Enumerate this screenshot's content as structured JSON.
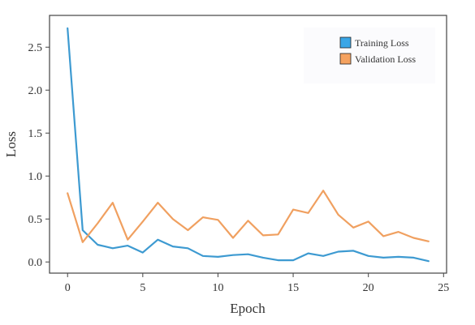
{
  "chart_data": {
    "type": "line",
    "xlabel": "Epoch",
    "ylabel": "Loss",
    "xlim": [
      -1.2,
      25.2
    ],
    "ylim": [
      -0.13,
      2.87
    ],
    "xticks": [
      0,
      5,
      10,
      15,
      20,
      25
    ],
    "xtick_labels": [
      "0",
      "5",
      "10",
      "15",
      "20",
      "25"
    ],
    "yticks": [
      0.0,
      0.5,
      1.0,
      1.5,
      2.0,
      2.5
    ],
    "ytick_labels": [
      "0.0",
      "0.5",
      "1.0",
      "1.5",
      "2.0",
      "2.5"
    ],
    "grid": false,
    "legend_position": "top-right",
    "x": [
      0,
      1,
      2,
      3,
      4,
      5,
      6,
      7,
      8,
      9,
      10,
      11,
      12,
      13,
      14,
      15,
      16,
      17,
      18,
      19,
      20,
      21,
      22,
      23,
      24
    ],
    "series": [
      {
        "name": "Training Loss",
        "color": "#3d9ad1",
        "legend_color": "#3aa6e6",
        "values": [
          2.72,
          0.37,
          0.2,
          0.16,
          0.19,
          0.11,
          0.26,
          0.18,
          0.16,
          0.07,
          0.06,
          0.08,
          0.09,
          0.05,
          0.02,
          0.02,
          0.1,
          0.07,
          0.12,
          0.13,
          0.07,
          0.05,
          0.06,
          0.05,
          0.01
        ]
      },
      {
        "name": "Validation Loss",
        "color": "#f0a060",
        "legend_color": "#f5a25f",
        "values": [
          0.8,
          0.23,
          0.45,
          0.69,
          0.26,
          0.47,
          0.69,
          0.5,
          0.37,
          0.52,
          0.49,
          0.28,
          0.48,
          0.31,
          0.32,
          0.61,
          0.57,
          0.83,
          0.55,
          0.4,
          0.47,
          0.3,
          0.35,
          0.28,
          0.24
        ]
      }
    ]
  }
}
